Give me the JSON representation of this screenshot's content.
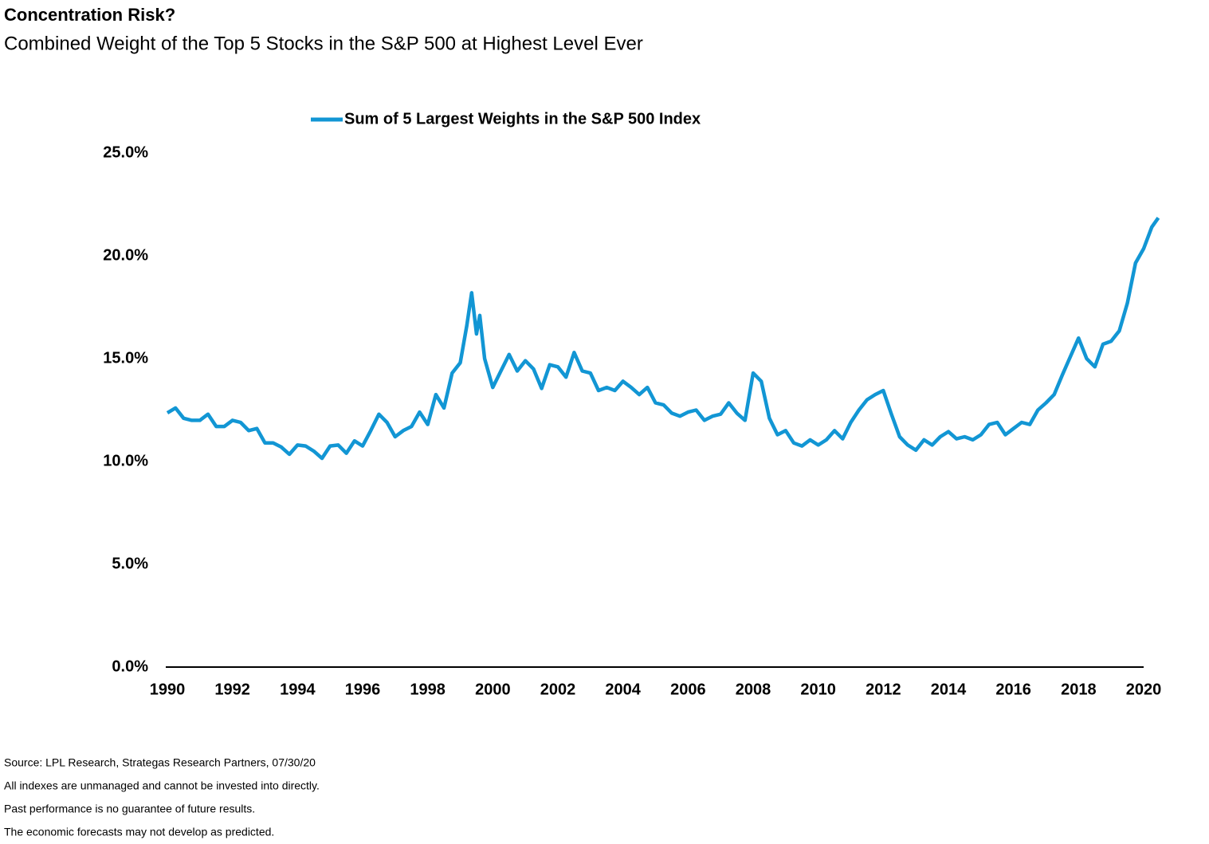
{
  "chart_data": {
    "type": "line",
    "title": "Concentration Risk?",
    "subtitle": "Combined Weight of the Top 5 Stocks in the S&P 500 at Highest Level Ever",
    "notes": [
      "Source: LPL Research, Strategas Research Partners, 07/30/20",
      "All indexes are unmanaged and cannot be invested into directly.",
      "Past performance is no guarantee of future results.",
      "The economic forecasts may not develop as predicted."
    ],
    "legend": "upper center",
    "x": [
      1990.0,
      1990.25,
      1990.5,
      1990.75,
      1991.0,
      1991.25,
      1991.5,
      1991.75,
      1992.0,
      1992.25,
      1992.5,
      1992.75,
      1993.0,
      1993.25,
      1993.5,
      1993.75,
      1994.0,
      1994.25,
      1994.5,
      1994.75,
      1995.0,
      1995.25,
      1995.5,
      1995.75,
      1996.0,
      1996.25,
      1996.5,
      1996.75,
      1997.0,
      1997.25,
      1997.5,
      1997.75,
      1998.0,
      1998.25,
      1998.5,
      1998.75,
      1999.0,
      1999.2,
      1999.35,
      1999.5,
      1999.6,
      1999.75,
      2000.0,
      2000.25,
      2000.5,
      2000.75,
      2001.0,
      2001.25,
      2001.5,
      2001.75,
      2002.0,
      2002.25,
      2002.5,
      2002.75,
      2003.0,
      2003.25,
      2003.5,
      2003.75,
      2004.0,
      2004.25,
      2004.5,
      2004.75,
      2005.0,
      2005.25,
      2005.5,
      2005.75,
      2006.0,
      2006.25,
      2006.5,
      2006.75,
      2007.0,
      2007.25,
      2007.5,
      2007.75,
      2008.0,
      2008.25,
      2008.5,
      2008.75,
      2009.0,
      2009.25,
      2009.5,
      2009.75,
      2010.0,
      2010.25,
      2010.5,
      2010.75,
      2011.0,
      2011.25,
      2011.5,
      2011.75,
      2012.0,
      2012.25,
      2012.5,
      2012.75,
      2013.0,
      2013.25,
      2013.5,
      2013.75,
      2014.0,
      2014.25,
      2014.5,
      2014.75,
      2015.0,
      2015.25,
      2015.5,
      2015.75,
      2016.0,
      2016.25,
      2016.5,
      2016.75,
      2017.0,
      2017.25,
      2017.5,
      2017.75,
      2018.0,
      2018.25,
      2018.5,
      2018.75,
      2019.0,
      2019.25,
      2019.5,
      2019.75,
      2020.0,
      2020.25,
      2020.45
    ],
    "series": [
      {
        "name": "Sum of 5 Largest Weights in the S&P 500 Index",
        "color": "#1296d4",
        "values": [
          12.36,
          12.6,
          12.1,
          12.0,
          12.0,
          12.3,
          11.7,
          11.7,
          12.0,
          11.9,
          11.5,
          11.6,
          10.9,
          10.9,
          10.7,
          10.35,
          10.8,
          10.75,
          10.5,
          10.15,
          10.75,
          10.8,
          10.4,
          11.0,
          10.75,
          11.5,
          12.3,
          11.9,
          11.2,
          11.5,
          11.7,
          12.4,
          11.8,
          13.25,
          12.6,
          14.3,
          14.8,
          16.6,
          18.2,
          16.2,
          17.1,
          15.0,
          13.6,
          14.4,
          15.2,
          14.4,
          14.9,
          14.5,
          13.55,
          14.7,
          14.6,
          14.1,
          15.3,
          14.4,
          14.3,
          13.45,
          13.6,
          13.45,
          13.9,
          13.6,
          13.25,
          13.6,
          12.85,
          12.75,
          12.35,
          12.2,
          12.4,
          12.5,
          12.0,
          12.2,
          12.3,
          12.85,
          12.35,
          12.0,
          14.3,
          13.9,
          12.1,
          11.3,
          11.5,
          10.9,
          10.75,
          11.05,
          10.8,
          11.05,
          11.5,
          11.1,
          11.9,
          12.5,
          13.0,
          13.25,
          13.45,
          12.3,
          11.2,
          10.8,
          10.55,
          11.05,
          10.8,
          11.2,
          11.45,
          11.1,
          11.2,
          11.05,
          11.3,
          11.8,
          11.9,
          11.3,
          11.6,
          11.9,
          11.8,
          12.5,
          12.85,
          13.25,
          14.2,
          15.1,
          16.0,
          15.0,
          14.6,
          15.7,
          15.85,
          16.35,
          17.7,
          19.65,
          20.35,
          21.4,
          21.85
        ]
      }
    ],
    "xlim": [
      1990,
      2020
    ],
    "xticks": [
      1990,
      1992,
      1994,
      1996,
      1998,
      2000,
      2002,
      2004,
      2006,
      2008,
      2010,
      2012,
      2014,
      2016,
      2018,
      2020
    ],
    "ylim": [
      0,
      25
    ],
    "yticks": [
      {
        "value": 0,
        "label": "0.0%"
      },
      {
        "value": 5,
        "label": "5.0%"
      },
      {
        "value": 10,
        "label": "10.0%"
      },
      {
        "value": 15,
        "label": "15.0%"
      },
      {
        "value": 20,
        "label": "20.0%"
      },
      {
        "value": 25,
        "label": "25.0%"
      }
    ],
    "grid": false
  }
}
